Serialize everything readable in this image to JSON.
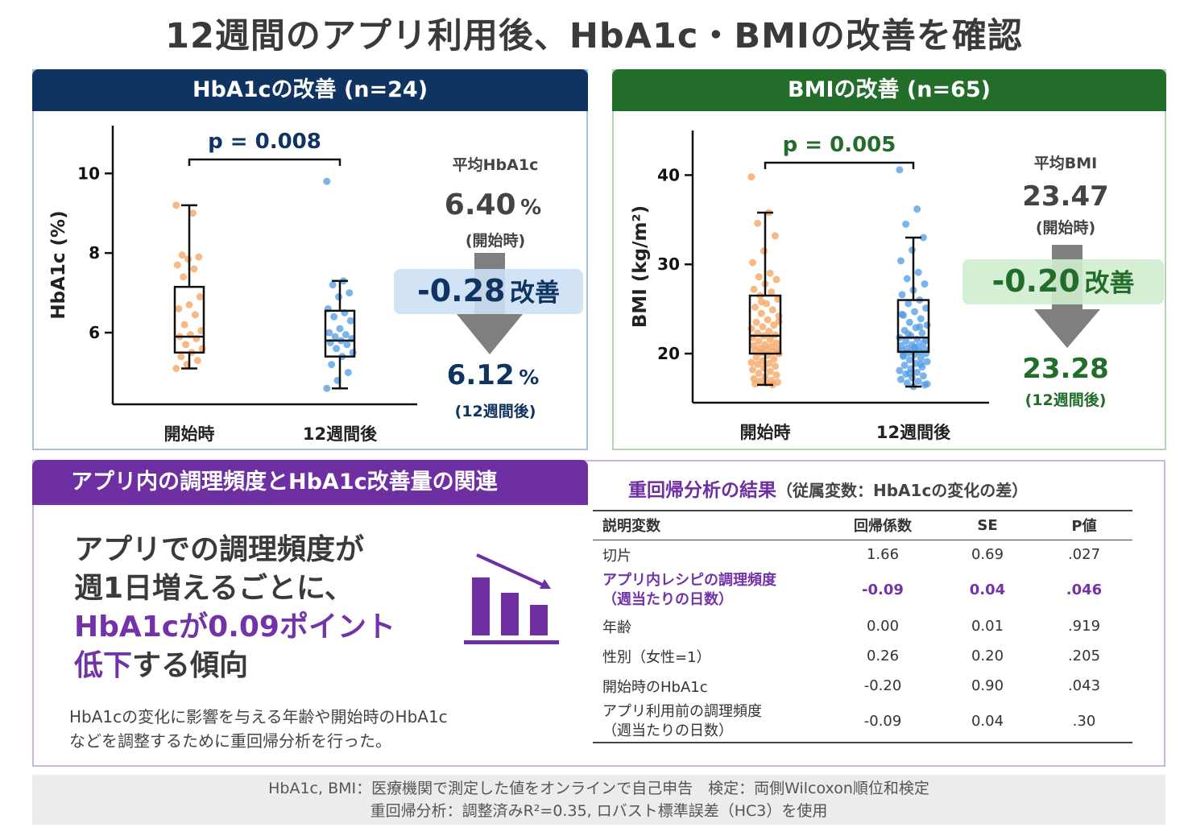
{
  "title": "12週間のアプリ利用後、HbA1c・BMIの改善を確認",
  "colors": {
    "orange": "#f4a15c",
    "blue": "#4f9be4",
    "navy": "#0f3461",
    "green": "#226d2a",
    "purple": "#6e2fa3",
    "arrow": "#7f7f7f"
  },
  "hba1c": {
    "header": "HbA1cの改善 (n=24)",
    "pvalue": "p = 0.008",
    "mean_title": "平均HbA1c",
    "start_value": "6.40",
    "start_unit": "%",
    "start_caption": "(開始時)",
    "change_value": "-0.28",
    "change_word": "改善",
    "end_value": "6.12",
    "end_unit": "%",
    "end_caption": "(12週間後)"
  },
  "bmi": {
    "header": "BMIの改善 (n=65)",
    "pvalue": "p = 0.005",
    "mean_title": "平均BMI",
    "start_value": "23.47",
    "start_caption": "(開始時)",
    "change_value": "-0.20",
    "change_word": "改善",
    "end_value": "23.28",
    "end_caption": "(12週間後)"
  },
  "chart_data": [
    {
      "type": "box",
      "ylabel": "HbA1c (%)",
      "ylim": [
        4.2,
        11.2
      ],
      "yticks": [
        6,
        8,
        10
      ],
      "categories": [
        "開始時",
        "12週間後"
      ],
      "boxes": [
        {
          "name": "開始時",
          "min": 5.1,
          "q1": 5.5,
          "median": 5.9,
          "q3": 7.15,
          "max": 9.2
        },
        {
          "name": "12週間後",
          "min": 4.6,
          "q1": 5.4,
          "median": 5.8,
          "q3": 6.55,
          "max": 7.3
        }
      ],
      "points": [
        [
          9.2,
          9.0,
          7.95,
          7.9,
          7.85,
          7.7,
          7.6,
          7.4,
          6.9,
          6.7,
          6.6,
          6.45,
          6.2,
          6.05,
          5.95,
          5.9,
          5.85,
          5.7,
          5.6,
          5.5,
          5.4,
          5.3,
          5.2,
          5.1
        ],
        [
          9.8,
          7.3,
          7.2,
          7.0,
          6.9,
          6.6,
          6.5,
          6.4,
          6.3,
          6.1,
          6.0,
          5.95,
          5.9,
          5.85,
          5.8,
          5.75,
          5.7,
          5.6,
          5.5,
          5.4,
          5.2,
          5.0,
          4.8,
          4.6
        ]
      ]
    },
    {
      "type": "box",
      "ylabel": "BMI (kg/m²)",
      "ylim": [
        14.5,
        45
      ],
      "yticks": [
        20,
        30,
        40
      ],
      "categories": [
        "開始時",
        "12週間後"
      ],
      "boxes": [
        {
          "name": "開始時",
          "min": 16.5,
          "q1": 20.0,
          "median": 22.0,
          "q3": 26.5,
          "max": 35.8
        },
        {
          "name": "12週間後",
          "min": 16.3,
          "q1": 20.2,
          "median": 21.8,
          "q3": 26.0,
          "max": 33.0
        }
      ],
      "points": [
        [
          39.8,
          35.8,
          34.6,
          33.2,
          31.5,
          30.2,
          29.0,
          28.6,
          28.3,
          27.8,
          27.2,
          26.9,
          26.5,
          26.1,
          25.6,
          25.2,
          24.9,
          24.5,
          24.2,
          23.8,
          23.5,
          23.2,
          23.0,
          22.8,
          22.5,
          22.3,
          22.1,
          22.0,
          21.8,
          21.6,
          21.4,
          21.2,
          21.0,
          20.9,
          20.8,
          20.6,
          20.5,
          20.4,
          20.3,
          20.2,
          20.1,
          20.0,
          19.8,
          19.6,
          19.4,
          19.2,
          19.0,
          18.9,
          18.8,
          18.6,
          18.4,
          18.2,
          18.0,
          17.8,
          17.6,
          17.4,
          17.2,
          17.0,
          16.9,
          16.8,
          16.7,
          16.6,
          16.5,
          25.8,
          23.6
        ],
        [
          40.6,
          36.2,
          34.5,
          33.0,
          31.6,
          30.4,
          29.1,
          28.4,
          27.8,
          27.1,
          26.6,
          26.0,
          25.6,
          25.1,
          24.7,
          24.3,
          23.9,
          23.5,
          23.2,
          22.9,
          22.6,
          22.3,
          22.0,
          21.8,
          21.6,
          21.4,
          21.2,
          21.0,
          20.9,
          20.8,
          20.6,
          20.5,
          20.4,
          20.3,
          20.2,
          20.1,
          20.0,
          19.9,
          19.7,
          19.5,
          19.3,
          19.1,
          18.9,
          18.7,
          18.5,
          18.3,
          18.1,
          17.9,
          17.7,
          17.5,
          17.3,
          17.1,
          16.9,
          16.7,
          16.5,
          16.3,
          24.4,
          23.0,
          22.2,
          21.5,
          20.7,
          19.8,
          18.8,
          17.8,
          16.6
        ]
      ]
    }
  ],
  "cooking": {
    "header": "アプリ内の調理頻度とHbA1c改善量の関連",
    "line1": "アプリでの調理頻度が",
    "line2": "週1日増えるごとに、",
    "line3": "HbA1cが0.09ポイント",
    "line4_hl": "低下",
    "line4_rest": "する傾向",
    "note1": "HbA1cの変化に影響を与える年齢や開始時のHbA1c",
    "note2": "などを調整するために重回帰分析を行った。",
    "table_title": "重回帰分析の結果",
    "table_sub": "（従属変数：HbA1cの変化の差）",
    "columns": [
      "説明変数",
      "回帰係数",
      "SE",
      "P値"
    ],
    "rows": [
      [
        "切片",
        "1.66",
        "0.69",
        ".027"
      ],
      [
        "アプリ内レシピの調理頻度",
        "（週当たりの日数）",
        "-0.09",
        "0.04",
        ".046"
      ],
      [
        "年齢",
        "0.00",
        "0.01",
        ".919"
      ],
      [
        "性別（女性=1）",
        "0.26",
        "0.20",
        ".205"
      ],
      [
        "開始時のHbA1c",
        "-0.20",
        "0.90",
        ".043"
      ],
      [
        "アプリ利用前の調理頻度",
        "（週当たりの日数）",
        "-0.09",
        "0.04",
        ".30"
      ]
    ]
  },
  "footer": {
    "line1": "HbA1c, BMI：医療機関で測定した値をオンラインで自己申告　検定：両側Wilcoxon順位和検定",
    "line2": "重回帰分析：調整済みR²=0.35, ロバスト標準誤差（HC3）を使用"
  }
}
